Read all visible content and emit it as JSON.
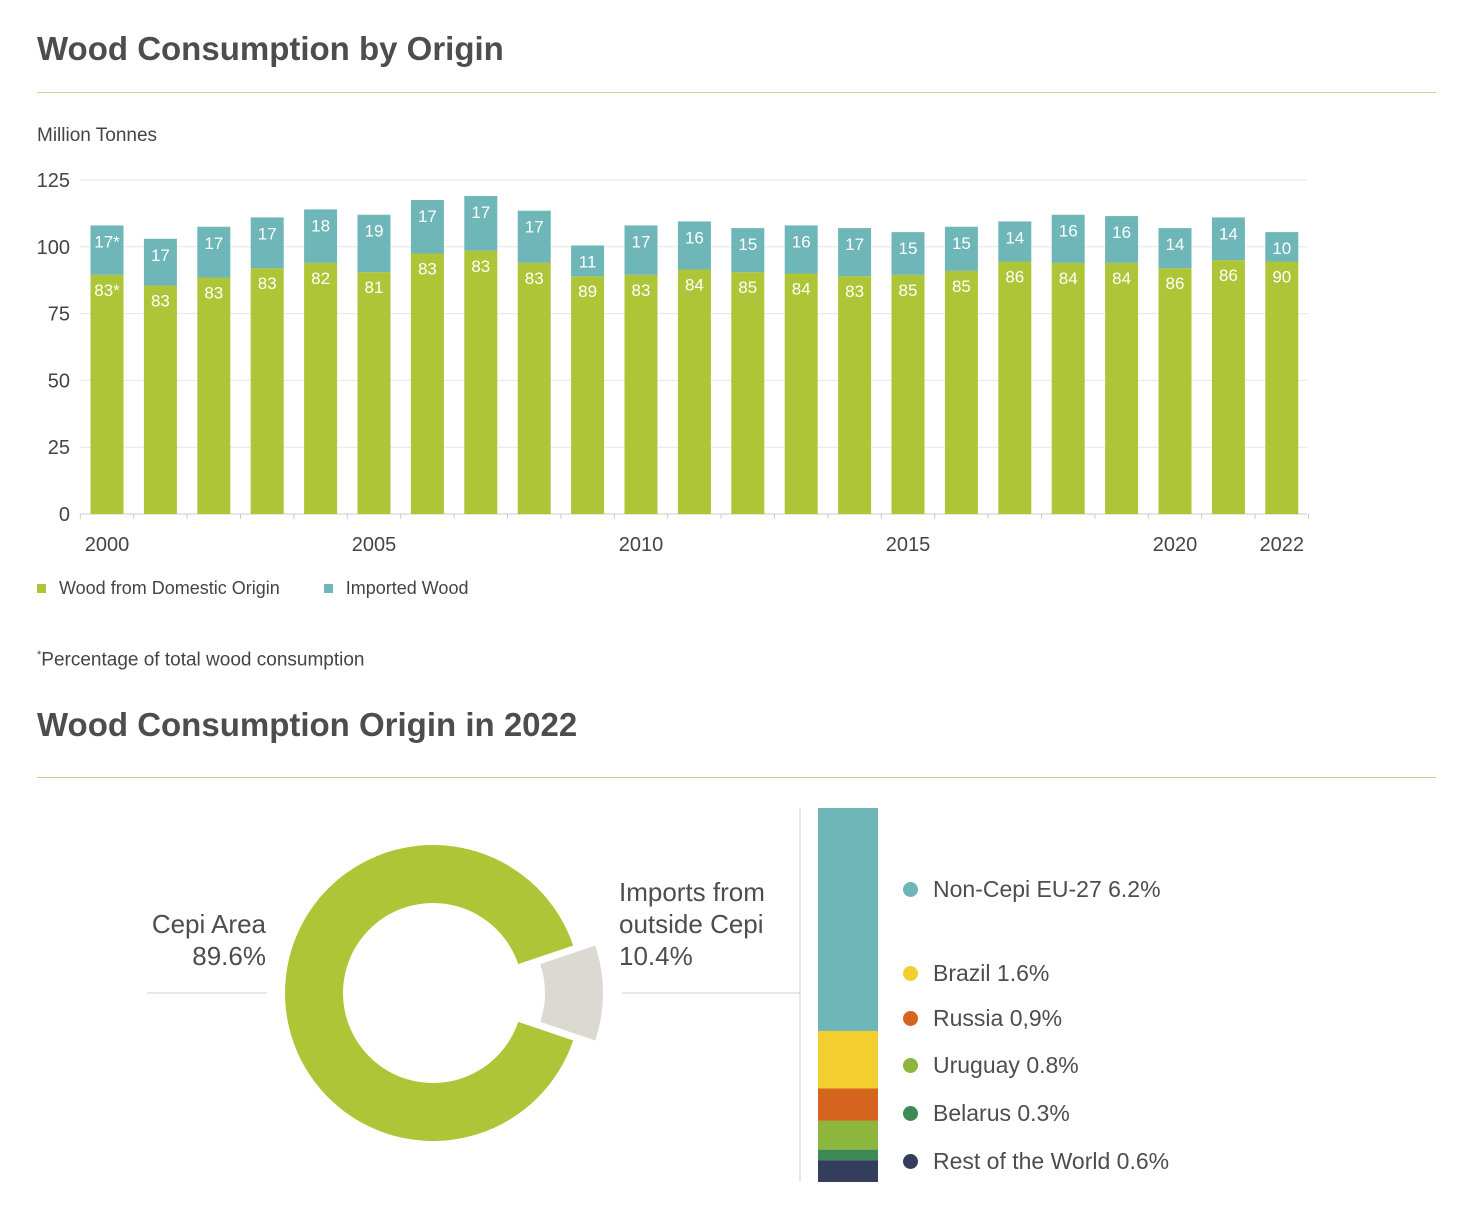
{
  "titles": {
    "bar": "Wood Consumption by Origin",
    "donut": "Wood Consumption Origin in 2022"
  },
  "unit_label": "Million Tonnes",
  "footnote_marker": "*",
  "footnote_text": "Percentage of total wood consumption",
  "colors": {
    "domestic": "#adc536",
    "imported": "#6fb6b8",
    "grid": "#e6e6e6",
    "axis": "#cccccc",
    "imports_slice": "#dcd9d3"
  },
  "chart_data": [
    {
      "type": "bar",
      "stacked": true,
      "title": "Wood Consumption by Origin",
      "ylabel": "Million Tonnes",
      "ylim": [
        0,
        125
      ],
      "yticks": [
        0,
        25,
        50,
        75,
        100,
        125
      ],
      "grid": true,
      "x": [
        2000,
        2001,
        2002,
        2003,
        2004,
        2005,
        2006,
        2007,
        2008,
        2009,
        2010,
        2011,
        2012,
        2013,
        2014,
        2015,
        2016,
        2017,
        2018,
        2019,
        2020,
        2021,
        2022
      ],
      "xtick_labels": [
        "2000",
        "2005",
        "2010",
        "2015",
        "2020",
        "2022"
      ],
      "xtick_years": [
        2000,
        2005,
        2010,
        2015,
        2020,
        2022
      ],
      "series": [
        {
          "name": "Wood from Domestic Origin",
          "values": [
            89.5,
            85.5,
            88.5,
            92,
            94,
            90.5,
            97.5,
            98.5,
            94,
            89,
            89.5,
            91.5,
            90.5,
            90,
            89,
            89.5,
            91,
            94.5,
            94,
            94,
            92,
            95,
            94.5
          ],
          "labels": [
            "83*",
            "83",
            "83",
            "83",
            "82",
            "81",
            "83",
            "83",
            "83",
            "89",
            "83",
            "84",
            "85",
            "84",
            "83",
            "85",
            "85",
            "86",
            "84",
            "84",
            "86",
            "86",
            "90"
          ]
        },
        {
          "name": "Imported Wood",
          "values": [
            18.5,
            17.5,
            19,
            19,
            20,
            21.5,
            20,
            20.5,
            19.5,
            11.5,
            18.5,
            18,
            16.5,
            18,
            18,
            16,
            16.5,
            15,
            18,
            17.5,
            15,
            16,
            11
          ],
          "labels": [
            "17*",
            "17",
            "17",
            "17",
            "18",
            "19",
            "17",
            "17",
            "17",
            "11",
            "17",
            "16",
            "15",
            "16",
            "17",
            "15",
            "15",
            "14",
            "16",
            "16",
            "14",
            "14",
            "10"
          ]
        }
      ],
      "legend": "bottom-left"
    },
    {
      "type": "pie",
      "donut": true,
      "title": "Wood Consumption Origin in 2022",
      "slices": [
        {
          "name": "Cepi Area",
          "value": 89.6,
          "label": "89.6%",
          "color": "#adc536"
        },
        {
          "name": "Imports from outside Cepi",
          "value": 10.4,
          "label": "10.4%",
          "color": "#dcd9d3"
        }
      ]
    },
    {
      "type": "bar",
      "stacked": true,
      "title": "",
      "breakdown_of": "Imports from outside Cepi",
      "total": 10.4,
      "segments": [
        {
          "name": "Non-Cepi EU-27",
          "value": 6.2,
          "label": "6.2%",
          "color": "#6fb6b8"
        },
        {
          "name": "Brazil",
          "value": 1.6,
          "label": "1.6%",
          "color": "#f2cf2f"
        },
        {
          "name": "Russia",
          "value": 0.9,
          "label": "0,9%",
          "color": "#d5641e"
        },
        {
          "name": "Uruguay",
          "value": 0.8,
          "label": "0.8%",
          "color": "#8db63c"
        },
        {
          "name": "Belarus",
          "value": 0.3,
          "label": "0.3%",
          "color": "#3e8a57"
        },
        {
          "name": "Rest of the World",
          "value": 0.6,
          "label": "0.6%",
          "color": "#353d5d"
        }
      ]
    }
  ]
}
